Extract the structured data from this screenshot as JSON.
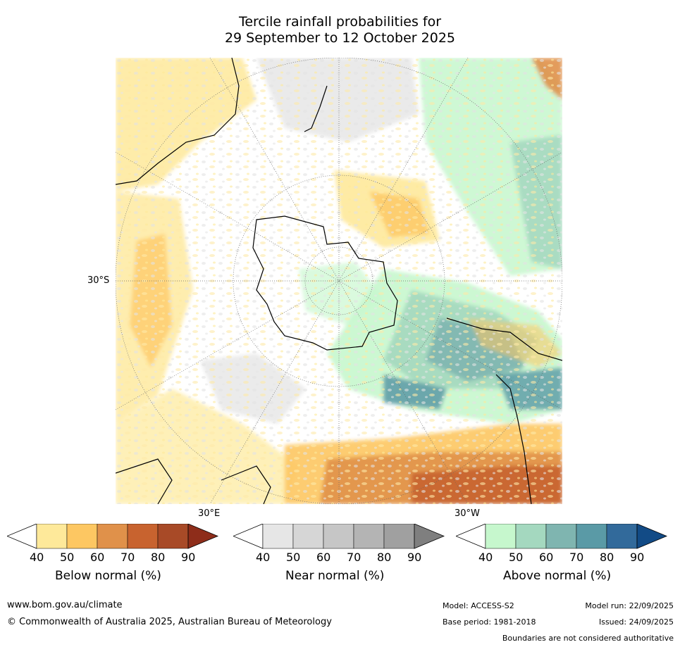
{
  "title": {
    "line1": "Tercile rainfall probabilities for",
    "line2": "29 September to 12 October 2025"
  },
  "map": {
    "lat_label": "30°S",
    "lon_label_left": "30°E",
    "lon_label_right": "30°W"
  },
  "colorbars": [
    {
      "title": "Below normal (%)",
      "ticks": [
        "40",
        "50",
        "60",
        "70",
        "80",
        "90"
      ],
      "colors": [
        "#ffffff",
        "#fee99a",
        "#fdc762",
        "#e0914a",
        "#c8632f",
        "#a84a27",
        "#8e2d1a"
      ]
    },
    {
      "title": "Near normal (%)",
      "ticks": [
        "40",
        "50",
        "60",
        "70",
        "80",
        "90"
      ],
      "colors": [
        "#ffffff",
        "#e6e6e6",
        "#d6d6d6",
        "#c6c6c6",
        "#b4b4b4",
        "#a0a0a0",
        "#7f7f7f"
      ]
    },
    {
      "title": "Above normal (%)",
      "ticks": [
        "40",
        "50",
        "60",
        "70",
        "80",
        "90"
      ],
      "colors": [
        "#ffffff",
        "#c6f7cd",
        "#a4d8bf",
        "#7fb5b0",
        "#5a9aa6",
        "#326a9b",
        "#124b86"
      ]
    }
  ],
  "footer": {
    "url": "www.bom.gov.au/climate",
    "copyright": "© Commonwealth of Australia 2025, Australian Bureau of Meteorology",
    "model": "Model: ACCESS-S2",
    "base_period": "Base period: 1981-2018",
    "model_run": "Model run: 22/09/2025",
    "issued": "Issued: 24/09/2025",
    "disclaimer": "Boundaries are not considered authoritative"
  }
}
